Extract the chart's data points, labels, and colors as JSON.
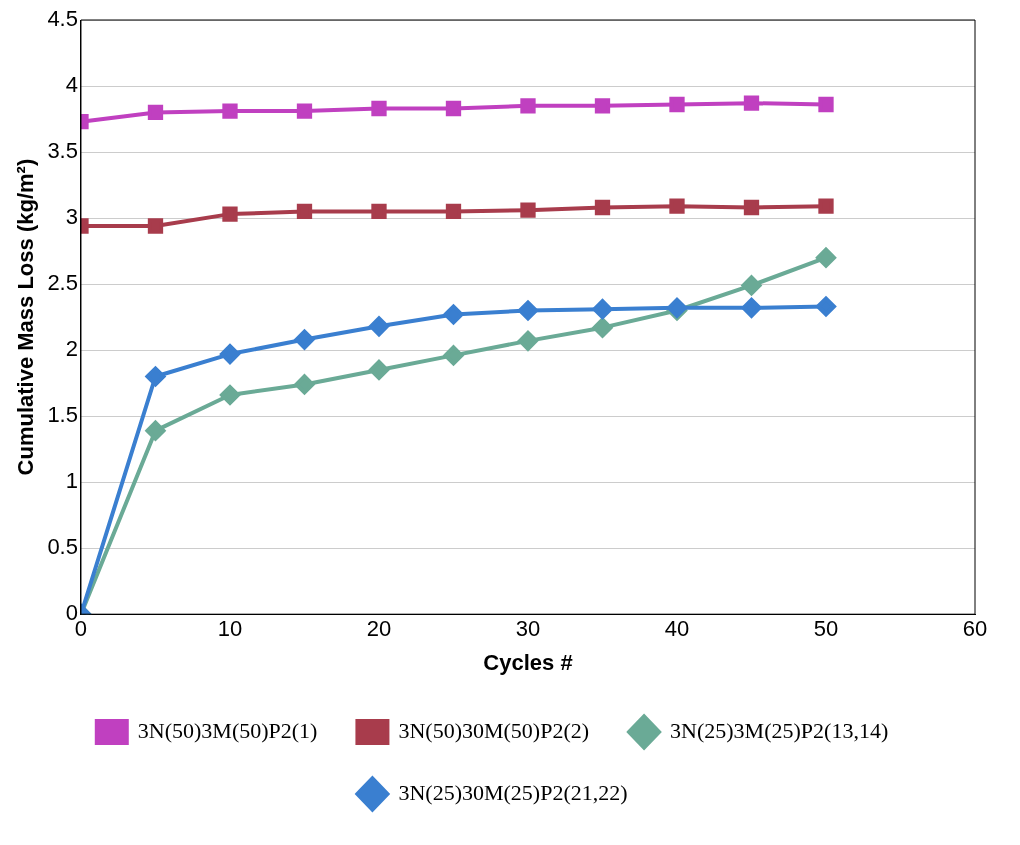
{
  "chart_data": {
    "type": "line",
    "xlabel": "Cycles #",
    "ylabel": "Cumulative Mass Loss (kg/m²)",
    "x": [
      0,
      5,
      10,
      15,
      20,
      25,
      30,
      35,
      40,
      45,
      50
    ],
    "xlim": [
      0,
      60
    ],
    "xticks": [
      0,
      10,
      20,
      30,
      40,
      50,
      60
    ],
    "ylim": [
      0,
      4.5
    ],
    "yticks": [
      0,
      0.5,
      1,
      1.5,
      2,
      2.5,
      3,
      3.5,
      4,
      4.5
    ],
    "grid": "y",
    "legend": "bottom",
    "line_style": "solid",
    "series": [
      {
        "name": "3N(50)3M(50)P2(1)",
        "color": "#c040c0",
        "marker": "square",
        "values": [
          3.73,
          3.8,
          3.81,
          3.81,
          3.83,
          3.83,
          3.85,
          3.85,
          3.86,
          3.87,
          3.86
        ]
      },
      {
        "name": "3N(50)30M(50)P2(2)",
        "color": "#a83c4c",
        "marker": "square",
        "values": [
          2.94,
          2.94,
          3.03,
          3.05,
          3.05,
          3.05,
          3.06,
          3.08,
          3.09,
          3.08,
          3.09
        ]
      },
      {
        "name": "3N(25)3M(25)P2(13,14)",
        "color": "#6aaa96",
        "marker": "diamond",
        "values": [
          0,
          1.39,
          1.66,
          1.74,
          1.85,
          1.96,
          2.07,
          2.17,
          2.3,
          2.49,
          2.7
        ]
      },
      {
        "name": "3N(25)30M(25)P2(21,22)",
        "color": "#3a7fd0",
        "marker": "diamond",
        "values": [
          0,
          1.8,
          1.97,
          2.08,
          2.18,
          2.27,
          2.3,
          2.31,
          2.32,
          2.32,
          2.33
        ]
      }
    ]
  }
}
